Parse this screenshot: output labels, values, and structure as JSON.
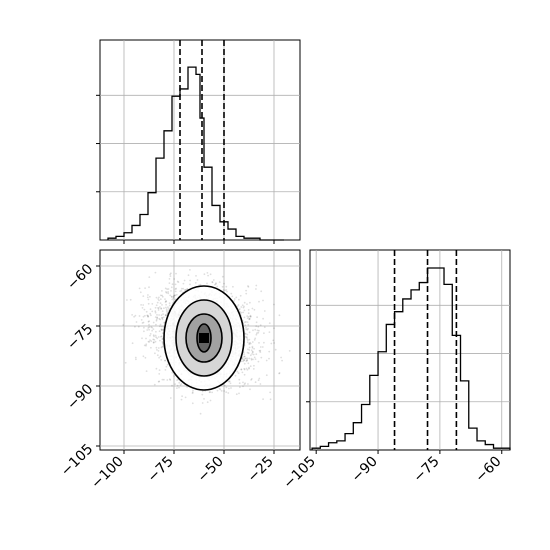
{
  "chart_data": [
    {
      "type": "histogram",
      "panel": "top-left",
      "x_ticks": [
        -100,
        -75,
        -50,
        -25
      ],
      "x_tick_labels": [
        "",
        "",
        "",
        ""
      ],
      "xlim": [
        -112,
        -12
      ],
      "grid": true,
      "quantile_lines": [
        -72,
        -61,
        -50
      ],
      "bins": [
        -108,
        -104,
        -100,
        -96,
        -92,
        -88,
        -84,
        -80,
        -76,
        -72,
        -68,
        -64,
        -62,
        -60,
        -56,
        -52,
        -48,
        -44,
        -40,
        -36,
        -32,
        -28,
        -24,
        -20
      ],
      "counts": [
        0.01,
        0.02,
        0.04,
        0.08,
        0.14,
        0.26,
        0.45,
        0.6,
        0.79,
        0.83,
        0.95,
        0.91,
        0.67,
        0.4,
        0.19,
        0.1,
        0.06,
        0.02,
        0.01,
        0.01,
        0.0,
        0.0,
        0.0
      ]
    },
    {
      "type": "scatter-contour",
      "panel": "bottom-left",
      "x_ticks": [
        -100,
        -75,
        -50,
        -25
      ],
      "x_tick_labels": [
        "−100",
        "−75",
        "−50",
        "−25"
      ],
      "y_ticks": [
        -60,
        -75,
        -90,
        -105
      ],
      "y_tick_labels": [
        "−60",
        "−75",
        "−90",
        "−105"
      ],
      "xlim": [
        -112,
        -12
      ],
      "ylim": [
        -106,
        -56
      ],
      "grid": true,
      "center": [
        -60,
        -78
      ],
      "contour_levels": [
        {
          "rx": 20,
          "ry": 13
        },
        {
          "rx": 14,
          "ry": 9.5
        },
        {
          "rx": 9,
          "ry": 6
        },
        {
          "rx": 3.5,
          "ry": 3.5
        }
      ]
    },
    {
      "type": "histogram",
      "panel": "bottom-right",
      "x_ticks": [
        -105,
        -90,
        -75,
        -60
      ],
      "x_tick_labels": [
        "−105",
        "−90",
        "−75",
        "−60"
      ],
      "xlim": [
        -106.5,
        -58
      ],
      "grid": true,
      "quantile_lines": [
        -86,
        -78,
        -71
      ],
      "bins": [
        -106,
        -104,
        -102,
        -100,
        -98,
        -96,
        -94,
        -92,
        -90,
        -88,
        -86,
        -84,
        -82,
        -80,
        -78,
        -76,
        -74,
        -72,
        -70,
        -68,
        -66,
        -64,
        -62,
        -60,
        -58
      ],
      "counts": [
        0.01,
        0.02,
        0.04,
        0.05,
        0.09,
        0.15,
        0.25,
        0.41,
        0.54,
        0.69,
        0.76,
        0.83,
        0.88,
        0.92,
        1.0,
        1.0,
        0.91,
        0.63,
        0.38,
        0.12,
        0.05,
        0.03,
        0.01,
        0.01
      ]
    }
  ]
}
